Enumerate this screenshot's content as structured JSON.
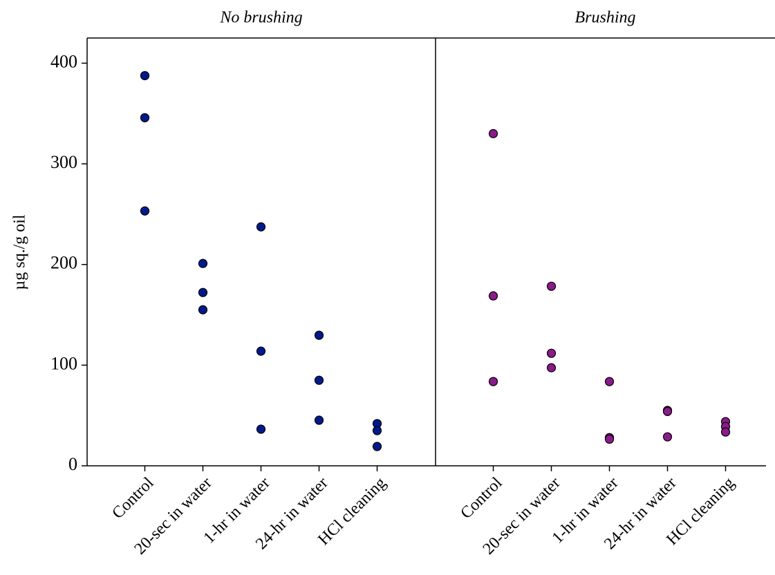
{
  "chart_data": [
    {
      "type": "scatter",
      "title": "No brushing",
      "ylabel": "µg sq./g oil",
      "categories": [
        "Control",
        "20-sec in water",
        "1-hr in water",
        "24-hr in water",
        "HCl cleaning"
      ],
      "series": [
        {
          "color": "#001a8c",
          "values": [
            [
              387.6,
              345.8,
              253.2
            ],
            [
              201,
              172.2,
              155
            ],
            [
              237.4,
              113.9,
              36.4
            ],
            [
              129.7,
              85,
              45.3
            ],
            [
              41.9,
              35,
              19.2
            ]
          ]
        }
      ],
      "ylim": [
        0,
        425
      ],
      "yticks": [
        0,
        100,
        200,
        300,
        400
      ]
    },
    {
      "type": "scatter",
      "title": "Brushing",
      "categories": [
        "Control",
        "20-sec in water",
        "1-hr in water",
        "24-hr in water",
        "HCl cleaning"
      ],
      "series": [
        {
          "color": "#8b1a8b",
          "values": [
            [
              330,
              168.8,
              83.7
            ],
            [
              178.4,
              111.8,
              97.4
            ],
            [
              83.7,
              28,
              26.5
            ],
            [
              55,
              54,
              28.8
            ],
            [
              43.9,
              39,
              33.6
            ]
          ]
        }
      ],
      "ylim": [
        0,
        425
      ]
    }
  ]
}
